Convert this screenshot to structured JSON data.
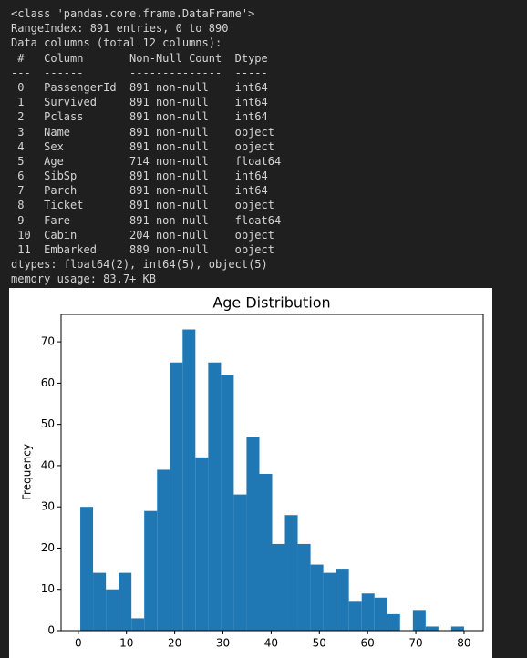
{
  "info": {
    "lines": [
      "<class 'pandas.core.frame.DataFrame'>",
      "RangeIndex: 891 entries, 0 to 890",
      "Data columns (total 12 columns):",
      " #   Column       Non-Null Count  Dtype  ",
      "---  ------       --------------  -----  ",
      " 0   PassengerId  891 non-null    int64  ",
      " 1   Survived     891 non-null    int64  ",
      " 2   Pclass       891 non-null    int64  ",
      " 3   Name         891 non-null    object ",
      " 4   Sex          891 non-null    object ",
      " 5   Age          714 non-null    float64",
      " 6   SibSp        891 non-null    int64  ",
      " 7   Parch        891 non-null    int64  ",
      " 8   Ticket       891 non-null    object ",
      " 9   Fare         891 non-null    float64",
      " 10  Cabin        204 non-null    object ",
      " 11  Embarked     889 non-null    object ",
      "dtypes: float64(2), int64(5), object(5)",
      "memory usage: 83.7+ KB"
    ]
  },
  "chart_data": {
    "type": "histogram",
    "title": "Age Distribution",
    "ylabel": "Frequency",
    "color": "#1f77b4",
    "bins": [
      0.42,
      3.07,
      5.73,
      8.38,
      11.03,
      13.68,
      16.34,
      18.99,
      21.64,
      24.29,
      26.95,
      29.6,
      32.25,
      34.9,
      37.56,
      40.21,
      42.86,
      45.51,
      48.17,
      50.82,
      53.47,
      56.12,
      58.78,
      61.43,
      64.08,
      66.73,
      69.39,
      72.04,
      74.69,
      77.34,
      80
    ],
    "values": [
      30,
      14,
      10,
      14,
      3,
      29,
      39,
      65,
      73,
      42,
      65,
      62,
      33,
      47,
      38,
      21,
      28,
      21,
      16,
      14,
      15,
      7,
      9,
      8,
      4,
      0,
      5,
      1,
      0,
      1
    ],
    "xlim": [
      -3.56,
      83.98
    ],
    "ylim": [
      0,
      76.65
    ],
    "xticks": [
      0,
      10,
      20,
      30,
      40,
      50,
      60,
      70,
      80
    ],
    "yticks": [
      0,
      10,
      20,
      30,
      40,
      50,
      60,
      70
    ]
  }
}
